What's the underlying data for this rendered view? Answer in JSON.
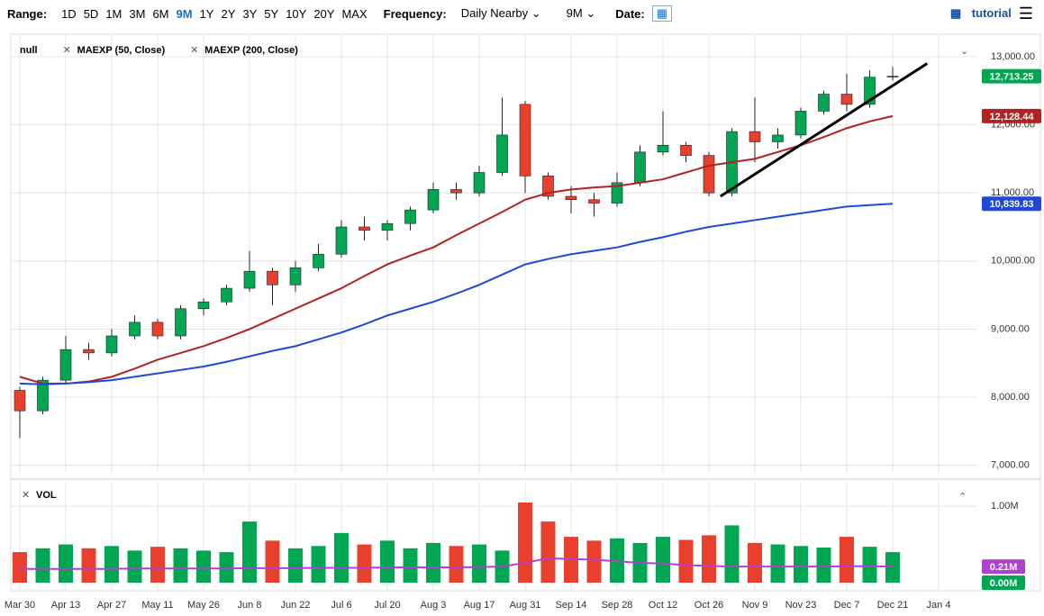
{
  "toolbar": {
    "range_label": "Range:",
    "ranges": [
      "1D",
      "5D",
      "1M",
      "3M",
      "6M",
      "9M",
      "1Y",
      "2Y",
      "3Y",
      "5Y",
      "10Y",
      "20Y",
      "MAX"
    ],
    "active_range": "9M",
    "frequency_label": "Frequency:",
    "frequency": "Daily Nearby",
    "period": "9M",
    "date_label": "Date:",
    "tutorial": "tutorial"
  },
  "chart_data": {
    "type": "candlestick",
    "legend": [
      "null",
      "MAEXP (50, Close)",
      "MAEXP (200, Close)"
    ],
    "categories": [
      "Mar 30",
      null,
      "Apr 13",
      null,
      "Apr 27",
      null,
      "May 11",
      null,
      "May 26",
      null,
      "Jun 8",
      null,
      "Jun 22",
      null,
      "Jul 6",
      null,
      "Jul 20",
      null,
      "Aug 3",
      null,
      "Aug 17",
      null,
      "Aug 31",
      null,
      "Sep 14",
      null,
      "Sep 28",
      null,
      "Oct 12",
      null,
      "Oct 26",
      null,
      "Nov 9",
      null,
      "Nov 23",
      null,
      "Dec 7",
      null,
      "Dec 21",
      null,
      "Jan 4"
    ],
    "open": [
      8100,
      7800,
      8250,
      8700,
      8650,
      8900,
      9100,
      8900,
      9300,
      9400,
      9600,
      9850,
      9650,
      9900,
      10100,
      10500,
      10450,
      10550,
      10750,
      11050,
      11000,
      11300,
      12300,
      11250,
      10950,
      10900,
      10850,
      11150,
      11600,
      11700,
      11550,
      11000,
      11900,
      11750,
      11850,
      12200,
      12450,
      12300,
      12700,
      null,
      null
    ],
    "high": [
      8150,
      8300,
      8900,
      8800,
      9000,
      9200,
      9150,
      9350,
      9450,
      9650,
      10150,
      9900,
      10000,
      10250,
      10600,
      10650,
      10600,
      10800,
      11150,
      11150,
      11400,
      12400,
      12350,
      11300,
      11100,
      11000,
      11300,
      11700,
      12200,
      11750,
      11600,
      11950,
      12400,
      11950,
      12250,
      12500,
      12750,
      12800,
      12850,
      null,
      null
    ],
    "low": [
      7400,
      7750,
      8200,
      8550,
      8600,
      8850,
      8850,
      8850,
      9200,
      9350,
      9550,
      9350,
      9550,
      9850,
      10050,
      10300,
      10300,
      10450,
      10700,
      10900,
      10950,
      11250,
      11000,
      10900,
      10700,
      10650,
      10800,
      11100,
      11550,
      11450,
      10950,
      10950,
      11450,
      11650,
      11800,
      12150,
      12200,
      12250,
      12650,
      null,
      null
    ],
    "close": [
      7800,
      8250,
      8700,
      8650,
      8900,
      9100,
      8900,
      9300,
      9400,
      9600,
      9850,
      9650,
      9900,
      10100,
      10500,
      10450,
      10550,
      10750,
      11050,
      11000,
      11300,
      11850,
      11250,
      10950,
      10900,
      10850,
      11150,
      11600,
      11700,
      11550,
      11000,
      11900,
      11750,
      11850,
      12200,
      12450,
      12300,
      12700,
      12713.25,
      null,
      null
    ],
    "up_color": "#00a651",
    "down_color": "#e8402c",
    "series": [
      {
        "name": "MAEXP (50, Close)",
        "color": "#b22222",
        "values": [
          8300,
          8200,
          8200,
          8230,
          8300,
          8420,
          8550,
          8650,
          8750,
          8870,
          9000,
          9150,
          9300,
          9450,
          9600,
          9780,
          9950,
          10080,
          10200,
          10380,
          10550,
          10720,
          10900,
          11000,
          11050,
          11080,
          11100,
          11150,
          11200,
          11300,
          11400,
          11450,
          11500,
          11600,
          11700,
          11820,
          11950,
          12050,
          12128.44,
          null,
          null
        ],
        "badge": "12,128.44"
      },
      {
        "name": "MAEXP (200, Close)",
        "color": "#1f48d8",
        "values": [
          8200,
          8190,
          8200,
          8220,
          8250,
          8300,
          8350,
          8400,
          8450,
          8520,
          8600,
          8680,
          8750,
          8850,
          8950,
          9070,
          9200,
          9300,
          9400,
          9520,
          9650,
          9800,
          9950,
          10030,
          10100,
          10150,
          10200,
          10280,
          10350,
          10430,
          10500,
          10550,
          10600,
          10650,
          10700,
          10750,
          10800,
          10820,
          10839.83,
          null,
          null
        ],
        "badge": "10,839.83"
      }
    ],
    "price_badge": {
      "value": 12713.25,
      "label": "12,713.25",
      "color": "#00a651"
    },
    "trendline": {
      "x_index": [
        30.5,
        39.5
      ],
      "values": [
        10950,
        12900
      ],
      "color": "#000000"
    },
    "ylim": [
      6890,
      13330
    ],
    "yticks": [
      {
        "value": 7000,
        "label": "7,000.00"
      },
      {
        "value": 8000,
        "label": "8,000.00"
      },
      {
        "value": 9000,
        "label": "9,000.00"
      },
      {
        "value": 10000,
        "label": "10,000.00"
      },
      {
        "value": 11000,
        "label": "11,000.00"
      },
      {
        "value": 12000,
        "label": "12,000.00"
      },
      {
        "value": 13000,
        "label": "13,000.00"
      }
    ],
    "grid": true,
    "volume": {
      "title": "VOL",
      "values": [
        400000,
        450000,
        500000,
        450000,
        480000,
        420000,
        470000,
        450000,
        420000,
        400000,
        800000,
        550000,
        450000,
        480000,
        650000,
        500000,
        550000,
        450000,
        520000,
        480000,
        500000,
        420000,
        1050000,
        800000,
        600000,
        550000,
        580000,
        520000,
        600000,
        560000,
        620000,
        750000,
        520000,
        500000,
        480000,
        460000,
        600000,
        470000,
        400000,
        null,
        null
      ],
      "ma": [
        180000,
        180000,
        180000,
        180000,
        180000,
        185000,
        185000,
        185000,
        185000,
        185000,
        190000,
        190000,
        190000,
        195000,
        195000,
        195000,
        200000,
        200000,
        200000,
        200000,
        205000,
        210000,
        260000,
        320000,
        310000,
        300000,
        280000,
        260000,
        250000,
        230000,
        220000,
        210000,
        210000,
        210000,
        210000,
        210000,
        215000,
        215000,
        210000,
        null,
        null
      ],
      "ma_color": "#b040d0",
      "ylim": [
        0,
        1320000
      ],
      "yticks": [
        {
          "value": 1000000,
          "label": "1.00M"
        }
      ],
      "badges": [
        {
          "value": 210000,
          "label": "0.21M",
          "color": "#b040d0"
        },
        {
          "value": 0,
          "label": "0.00M",
          "color": "#00a651"
        }
      ]
    }
  }
}
